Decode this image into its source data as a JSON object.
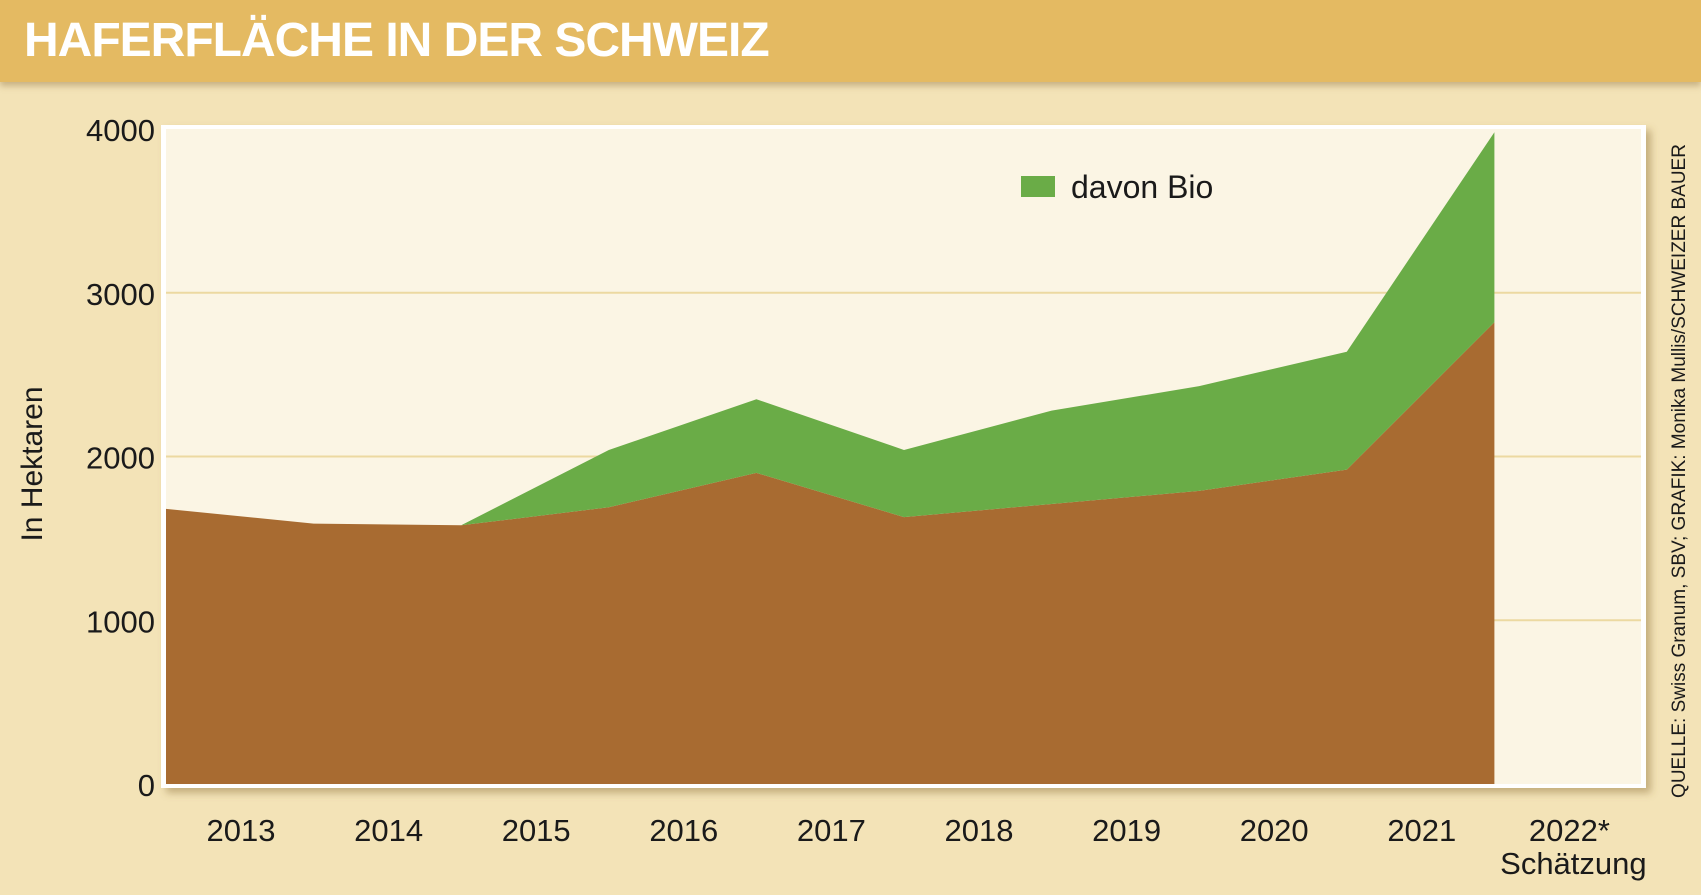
{
  "title": "HAFERFLÄCHE IN DER SCHWEIZ",
  "source": "QUELLE: Swiss Granum, SBV; GRAFIK: Monika Mullis/SCHWEIZER BAUER",
  "chart_data": {
    "type": "area",
    "title": "HAFERFLÄCHE IN DER SCHWEIZ",
    "ylabel": "In Hektaren",
    "xlabel": "",
    "categories": [
      "2013",
      "2014",
      "2015",
      "2016",
      "2017",
      "2018",
      "2019",
      "2020",
      "2021",
      "2022*"
    ],
    "category_note": "Schätzung",
    "ylim": [
      0,
      4000
    ],
    "yticks": [
      0,
      1000,
      2000,
      3000,
      4000
    ],
    "grid": "horizontal",
    "legend": {
      "position": "top-center",
      "entries": [
        "davon Bio"
      ]
    },
    "stacked": true,
    "series": [
      {
        "name": "",
        "color": "#a86b31",
        "values": [
          1680,
          1590,
          1580,
          1690,
          1900,
          1630,
          1710,
          1790,
          1920,
          2820
        ]
      },
      {
        "name": "davon Bio",
        "color": "#6aac47",
        "values": [
          0,
          0,
          0,
          350,
          450,
          410,
          570,
          640,
          720,
          1160
        ]
      }
    ],
    "colors": {
      "plot_background": "#fbf5e4",
      "page_background": "#f3e3b7",
      "title_bar": "#e4ba62",
      "gridline": "#ecd9a1"
    }
  }
}
